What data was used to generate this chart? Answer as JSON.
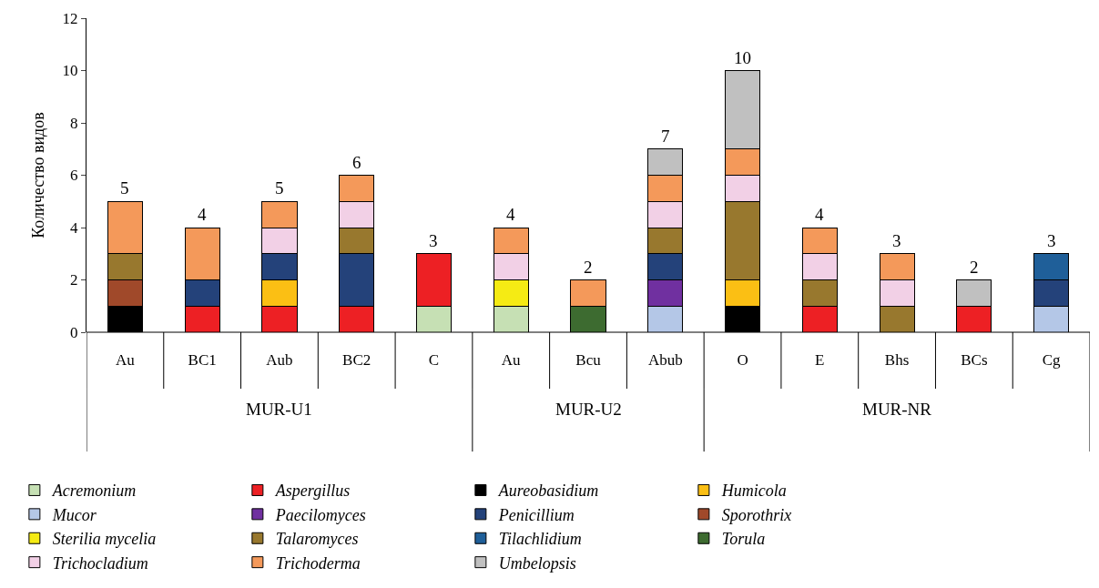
{
  "chart_data": {
    "type": "bar",
    "stacked": true,
    "ylabel": "Количество видов",
    "categories": [
      "Au",
      "BC1",
      "Aub",
      "BC2",
      "C",
      "Au",
      "Bcu",
      "Abub",
      "O",
      "E",
      "Bhs",
      "BCs",
      "Cg"
    ],
    "annotations": [
      "MUR-U1",
      "MUR-U2",
      "MUR-NR"
    ],
    "ylim": [
      0,
      12
    ],
    "yticks": [
      0,
      2,
      4,
      6,
      8,
      10,
      12
    ],
    "legend": "bottom",
    "totals": [
      "5",
      "4",
      "5",
      "6",
      "3",
      "4",
      "2",
      "7",
      "10",
      "4",
      "3",
      "2",
      "3"
    ],
    "series": [
      {
        "name": "Acremonium",
        "color": "#c6e0b4",
        "values": [
          null,
          null,
          null,
          null,
          1,
          1,
          null,
          null,
          null,
          null,
          null,
          null,
          null
        ]
      },
      {
        "name": "Aspergillus",
        "color": "#ed2024",
        "values": [
          null,
          1,
          1,
          1,
          2,
          null,
          null,
          null,
          null,
          1,
          null,
          1,
          null
        ]
      },
      {
        "name": "Aureobasidium",
        "color": "#000000",
        "values": [
          1,
          null,
          null,
          null,
          null,
          null,
          null,
          null,
          1,
          null,
          null,
          null,
          null
        ]
      },
      {
        "name": "Humicola",
        "color": "#fbbf14",
        "values": [
          null,
          null,
          1,
          null,
          null,
          null,
          null,
          null,
          1,
          null,
          null,
          null,
          null
        ]
      },
      {
        "name": "Mucor",
        "color": "#b4c7e7",
        "values": [
          null,
          null,
          null,
          null,
          null,
          null,
          null,
          1,
          null,
          null,
          null,
          null,
          1
        ]
      },
      {
        "name": "Paecilomyces",
        "color": "#7030a0",
        "values": [
          null,
          null,
          null,
          null,
          null,
          null,
          null,
          1,
          null,
          null,
          null,
          null,
          null
        ]
      },
      {
        "name": "Penicillium",
        "color": "#24427a",
        "values": [
          null,
          1,
          1,
          2,
          null,
          null,
          null,
          1,
          null,
          null,
          null,
          null,
          1
        ]
      },
      {
        "name": "Sporothrix",
        "color": "#a0492a",
        "values": [
          1,
          null,
          null,
          null,
          null,
          null,
          null,
          null,
          null,
          null,
          null,
          null,
          null
        ]
      },
      {
        "name": "Sterilia mycelia",
        "color": "#f5eb14",
        "values": [
          null,
          null,
          null,
          null,
          null,
          1,
          null,
          null,
          null,
          null,
          null,
          null,
          null
        ]
      },
      {
        "name": "Talaromyces",
        "color": "#98782e",
        "values": [
          1,
          null,
          null,
          1,
          null,
          null,
          null,
          1,
          3,
          1,
          1,
          null,
          null
        ]
      },
      {
        "name": "Tilachlidium",
        "color": "#1f5f99",
        "values": [
          null,
          null,
          null,
          null,
          null,
          null,
          null,
          null,
          null,
          null,
          null,
          null,
          1
        ]
      },
      {
        "name": "Torula",
        "color": "#3d6b30",
        "values": [
          null,
          null,
          null,
          null,
          null,
          null,
          1,
          null,
          null,
          null,
          null,
          null,
          null
        ]
      },
      {
        "name": "Trichocladium",
        "color": "#f2d0e6",
        "values": [
          null,
          null,
          1,
          1,
          null,
          1,
          null,
          1,
          1,
          1,
          1,
          null,
          null
        ]
      },
      {
        "name": "Trichoderma",
        "color": "#f4995a",
        "values": [
          2,
          2,
          1,
          1,
          null,
          1,
          1,
          1,
          1,
          1,
          1,
          null,
          null
        ]
      },
      {
        "name": "Umbelopsis",
        "color": "#c0c0c0",
        "values": [
          null,
          null,
          null,
          null,
          null,
          null,
          null,
          1,
          3,
          null,
          null,
          1,
          null
        ]
      }
    ]
  }
}
